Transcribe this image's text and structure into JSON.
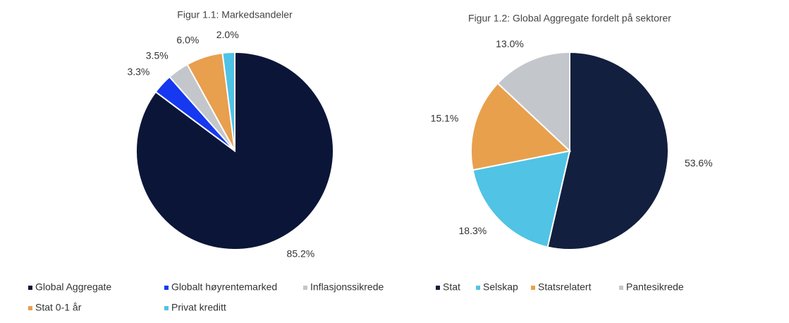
{
  "chart_data": [
    {
      "type": "pie",
      "title": "Figur 1.1: Markedsandeler",
      "categories": [
        "Global Aggregate",
        "Globalt høyrentemarked",
        "Inflasjonssikrede",
        "Stat 0-1 år",
        "Privat kreditt"
      ],
      "values": [
        85.2,
        3.3,
        3.5,
        6,
        2
      ],
      "value_labels": [
        "85.2%",
        "3.3%",
        "3.5%",
        "6.0%",
        "2.0%"
      ],
      "colors": [
        "#0a1538",
        "#1638f0",
        "#c3c6cb",
        "#e89f4e",
        "#4fc3e6"
      ]
    },
    {
      "type": "pie",
      "title": "Figur 1.2: Global Aggregate fordelt på sektorer",
      "categories": [
        "Stat",
        "Selskap",
        "Statsrelatert",
        "Pantesikrede"
      ],
      "values": [
        53.6,
        18.3,
        15.1,
        13
      ],
      "value_labels": [
        "53.6%",
        "18.3%",
        "15.1%",
        "13.0%"
      ],
      "colors": [
        "#131f3e",
        "#51c3e5",
        "#e8a04d",
        "#c3c6cb"
      ]
    }
  ]
}
